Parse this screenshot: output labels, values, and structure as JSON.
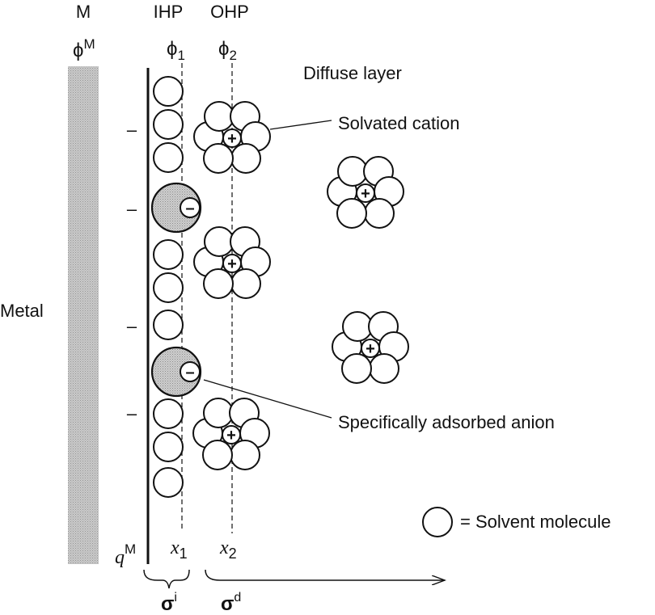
{
  "diagram": {
    "top_labels": {
      "metal": "M",
      "ihp": "IHP",
      "ohp": "OHP"
    },
    "potentials": {
      "metal": {
        "base": "ϕ",
        "sup": "M"
      },
      "ihp": {
        "base": "ϕ",
        "sub": "1"
      },
      "ohp": {
        "base": "ϕ",
        "sub": "2"
      }
    },
    "metal_label": "Metal",
    "diffuse_layer_label": "Diffuse layer",
    "solvated_cation_label": "Solvated cation",
    "anion_label": "Specifically adsorbed anion",
    "legend_label": "= Solvent molecule",
    "surface_charge": {
      "base": "q",
      "sup": "M"
    },
    "positions": {
      "ihp": {
        "base": "x",
        "sub": "1"
      },
      "ohp": {
        "base": "x",
        "sub": "2"
      }
    },
    "charges": {
      "inner": {
        "base": "σ",
        "sup": "i"
      },
      "diffuse": {
        "base": "σ",
        "sup": "d"
      }
    },
    "metal_charge_sign": "–",
    "cation_sign": "+",
    "anion_sign": "–",
    "metal_color": "#bdbdbd",
    "anion_fill": "#d4d4d4"
  }
}
